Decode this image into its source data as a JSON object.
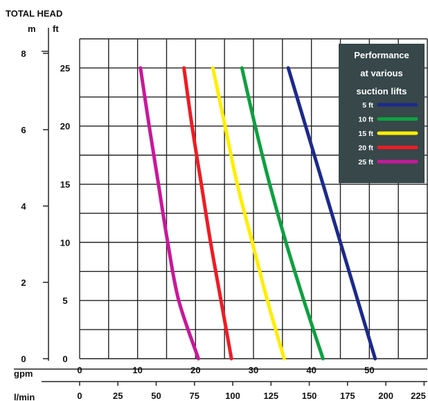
{
  "chart_data": {
    "type": "line",
    "title": "TOTAL HEAD",
    "y_left_unit": "m",
    "y_right_unit": "ft",
    "x_top_unit": "gpm",
    "x_bottom_unit": "l/min",
    "ft_ticks": [
      "0",
      "5",
      "10",
      "15",
      "20",
      "25"
    ],
    "m_ticks": [
      "0",
      "2",
      "4",
      "6",
      "8"
    ],
    "gpm_ticks": [
      "0",
      "10",
      "20",
      "30",
      "40",
      "50"
    ],
    "lmin_ticks": [
      "0",
      "25",
      "50",
      "75",
      "100",
      "125",
      "150",
      "175",
      "200",
      "225"
    ],
    "xlim_gpm": [
      0,
      60
    ],
    "ylim_ft": [
      0,
      27.5
    ],
    "ylim_m": [
      0,
      8.38
    ],
    "grid": true,
    "legend": {
      "title_lines": [
        "Performance",
        "at various",
        "suction lifts"
      ],
      "placement": "top-right",
      "background": "#37474a"
    },
    "series": [
      {
        "name": "5 ft",
        "color": "#1c2a8c",
        "x_gpm": [
          36,
          39,
          42,
          45,
          48,
          51
        ],
        "y_ft": [
          25,
          20,
          15,
          10,
          5,
          0
        ]
      },
      {
        "name": "10 ft",
        "color": "#0fa040",
        "x_gpm": [
          28,
          30.3,
          32.8,
          35.6,
          38.7,
          42
        ],
        "y_ft": [
          25,
          20,
          15,
          10,
          5,
          0
        ]
      },
      {
        "name": "15 ft",
        "color": "#ffee00",
        "x_gpm": [
          23,
          25.1,
          27.2,
          29.8,
          32.4,
          35.3
        ],
        "y_ft": [
          25,
          20,
          15,
          10,
          5,
          0
        ]
      },
      {
        "name": "20 ft",
        "color": "#ee1c24",
        "x_gpm": [
          18,
          19.4,
          21,
          22.6,
          24.4,
          26.2
        ],
        "y_ft": [
          25,
          20,
          15,
          10,
          5,
          0
        ]
      },
      {
        "name": "25 ft",
        "color": "#c8189a",
        "x_gpm": [
          10.5,
          12,
          13.6,
          15.2,
          17.1,
          20.5
        ],
        "y_ft": [
          25,
          20,
          15,
          10,
          5,
          0
        ]
      }
    ]
  }
}
